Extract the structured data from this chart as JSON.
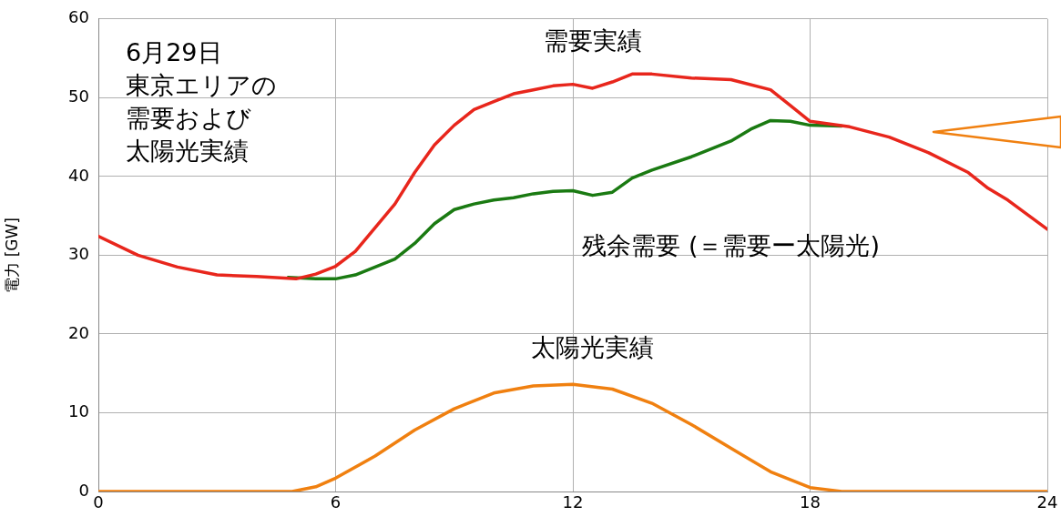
{
  "chart_data": {
    "type": "line",
    "ylabel": "電力 [GW]",
    "xlim": [
      0,
      24
    ],
    "xticks": [
      0,
      6,
      12,
      18,
      24
    ],
    "ylim": [
      0,
      60
    ],
    "yticks": [
      0,
      10,
      20,
      30,
      40,
      50,
      60
    ],
    "grid": true,
    "legend": false,
    "marker": "none",
    "line_style": "solid",
    "annotations": [
      "6月29日",
      "東京エリアの",
      "需要および",
      "太陽光実績"
    ],
    "series": [
      {
        "name": "需要実績",
        "color": "#e8261c",
        "x": [
          0,
          1,
          2,
          3,
          4,
          5,
          5.5,
          6,
          6.5,
          7,
          7.5,
          8,
          8.5,
          9,
          9.5,
          10,
          10.5,
          11,
          11.5,
          12,
          12.5,
          13,
          13.5,
          14,
          15,
          16,
          17,
          17.5,
          18,
          19,
          20,
          21,
          22,
          22.5,
          23,
          24
        ],
        "values": [
          32.4,
          30,
          28.5,
          27.5,
          27.3,
          27,
          27.6,
          28.6,
          30.5,
          33.5,
          36.5,
          40.5,
          44,
          46.5,
          48.5,
          49.5,
          50.5,
          51,
          51.5,
          51.7,
          51.2,
          52,
          53,
          53,
          52.5,
          52.3,
          51,
          49,
          47,
          46.3,
          45,
          43,
          40.5,
          38.5,
          37,
          33.3
        ]
      },
      {
        "name": "残余需要 (＝需要ー太陽光)",
        "color": "#1a7a12",
        "x": [
          4.8,
          5.5,
          6,
          6.5,
          7,
          7.5,
          8,
          8.5,
          9,
          9.5,
          10,
          10.5,
          11,
          11.5,
          12,
          12.5,
          13,
          13.5,
          14,
          15,
          16,
          16.5,
          17,
          17.5,
          18,
          18.8
        ],
        "values": [
          27.2,
          27,
          27,
          27.5,
          28.5,
          29.5,
          31.5,
          34,
          35.8,
          36.5,
          37,
          37.3,
          37.8,
          38.1,
          38.2,
          37.6,
          38,
          39.8,
          40.8,
          42.5,
          44.5,
          46,
          47.1,
          47,
          46.5,
          46.4
        ]
      },
      {
        "name": "太陽光実績",
        "color": "#f08010",
        "x": [
          0,
          4.9,
          5.5,
          6,
          7,
          8,
          9,
          10,
          11,
          12,
          13,
          14,
          15,
          16,
          17,
          18,
          18.8,
          24
        ],
        "values": [
          0,
          0,
          0.6,
          1.7,
          4.5,
          7.8,
          10.5,
          12.5,
          13.4,
          13.6,
          13,
          11.2,
          8.5,
          5.5,
          2.5,
          0.5,
          0,
          0
        ]
      }
    ]
  }
}
